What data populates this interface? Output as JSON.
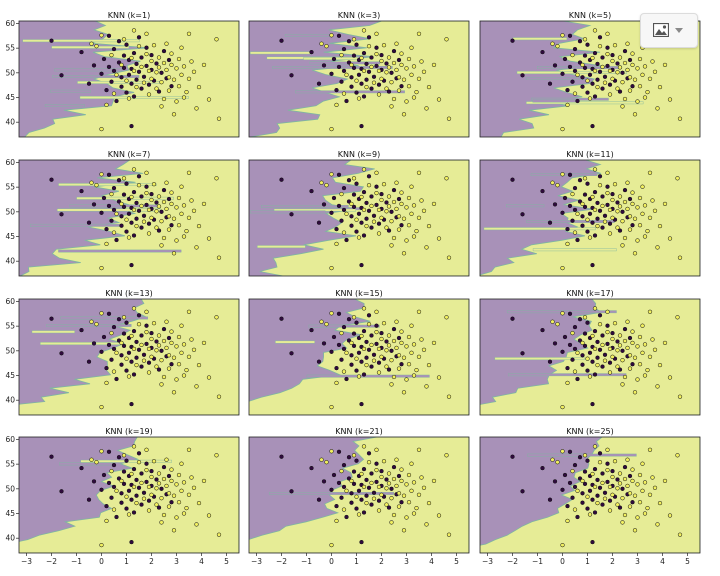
{
  "chart_data": {
    "type": "scatter",
    "layout": "4x3 grid of decision-boundary panels",
    "panels": [
      {
        "title": "KNN (k=1)"
      },
      {
        "title": "KNN (k=3)"
      },
      {
        "title": "KNN (k=5)"
      },
      {
        "title": "KNN (k=7)"
      },
      {
        "title": "KNN (k=9)"
      },
      {
        "title": "KNN (k=11)"
      },
      {
        "title": "KNN (k=13)"
      },
      {
        "title": "KNN (k=15)"
      },
      {
        "title": "KNN (k=17)"
      },
      {
        "title": "KNN (k=19)"
      },
      {
        "title": "KNN (k=21)"
      },
      {
        "title": "KNN (k=25)"
      }
    ],
    "xlim": [
      -3.3,
      5.5
    ],
    "ylim": [
      37,
      60.5
    ],
    "xticks": [
      -3,
      -2,
      -1,
      0,
      1,
      2,
      3,
      4,
      5
    ],
    "yticks": [
      40,
      45,
      50,
      55,
      60
    ],
    "region_colors": {
      "class0": "#a891b8",
      "class1": "#e6ec96",
      "edge": "#7fb6a0"
    },
    "point_colors": {
      "class0": "#2f0a3d",
      "class1": "#f2f060"
    },
    "points": [
      [
        -2.0,
        56.5,
        0
      ],
      [
        -1.6,
        49.5,
        0
      ],
      [
        -0.8,
        54.2,
        0
      ],
      [
        -0.5,
        47.8,
        0
      ],
      [
        -0.3,
        51.5,
        0
      ],
      [
        -0.2,
        55.4,
        1
      ],
      [
        0.0,
        49.8,
        0
      ],
      [
        0.1,
        52.8,
        0
      ],
      [
        0.2,
        46.5,
        0
      ],
      [
        0.3,
        57.5,
        0
      ],
      [
        0.3,
        51.2,
        0
      ],
      [
        0.4,
        48.2,
        0
      ],
      [
        0.5,
        54.8,
        0
      ],
      [
        0.5,
        50.4,
        0
      ],
      [
        0.6,
        44.3,
        0
      ],
      [
        0.7,
        52.1,
        0
      ],
      [
        0.7,
        56.4,
        0
      ],
      [
        0.8,
        49.1,
        0
      ],
      [
        0.8,
        47.2,
        0
      ],
      [
        0.9,
        53.5,
        0
      ],
      [
        0.9,
        51.0,
        0
      ],
      [
        1.0,
        46.0,
        0
      ],
      [
        1.0,
        55.7,
        0
      ],
      [
        1.1,
        49.6,
        0
      ],
      [
        1.1,
        52.6,
        0
      ],
      [
        1.2,
        47.8,
        0
      ],
      [
        1.2,
        50.8,
        0
      ],
      [
        1.3,
        54.0,
        0
      ],
      [
        1.3,
        45.2,
        0
      ],
      [
        1.4,
        51.8,
        0
      ],
      [
        1.4,
        48.6,
        0
      ],
      [
        1.5,
        57.2,
        0
      ],
      [
        1.5,
        50.2,
        0
      ],
      [
        1.6,
        53.1,
        0
      ],
      [
        1.6,
        46.8,
        0
      ],
      [
        1.7,
        49.2,
        0
      ],
      [
        1.8,
        51.4,
        0
      ],
      [
        1.8,
        55.1,
        0
      ],
      [
        1.9,
        47.6,
        0
      ],
      [
        2.0,
        50.6,
        0
      ],
      [
        2.0,
        53.6,
        0
      ],
      [
        2.1,
        48.4,
        0
      ],
      [
        2.2,
        51.9,
        0
      ],
      [
        2.3,
        46.2,
        0
      ],
      [
        2.4,
        50.0,
        0
      ],
      [
        2.5,
        54.4,
        0
      ],
      [
        2.6,
        48.9,
        0
      ],
      [
        1.2,
        39.2,
        0
      ],
      [
        2.7,
        52.6,
        0
      ],
      [
        2.8,
        47.3,
        0
      ],
      [
        -0.4,
        55.9,
        1
      ],
      [
        0.0,
        57.6,
        1
      ],
      [
        0.2,
        43.5,
        1
      ],
      [
        0.4,
        53.6,
        1
      ],
      [
        0.5,
        45.8,
        1
      ],
      [
        0.6,
        49.6,
        1
      ],
      [
        0.8,
        51.6,
        1
      ],
      [
        0.9,
        56.8,
        1
      ],
      [
        1.0,
        48.4,
        1
      ],
      [
        1.1,
        44.8,
        1
      ],
      [
        1.2,
        53.0,
        1
      ],
      [
        1.3,
        50.4,
        1
      ],
      [
        1.4,
        47.1,
        1
      ],
      [
        1.5,
        55.4,
        1
      ],
      [
        1.6,
        51.2,
        1
      ],
      [
        1.7,
        48.0,
        1
      ],
      [
        1.8,
        53.8,
        1
      ],
      [
        1.9,
        50.4,
        1
      ],
      [
        1.9,
        45.6,
        1
      ],
      [
        2.0,
        52.4,
        1
      ],
      [
        2.0,
        48.8,
        1
      ],
      [
        2.1,
        55.6,
        1
      ],
      [
        2.2,
        50.1,
        1
      ],
      [
        2.2,
        46.8,
        1
      ],
      [
        2.3,
        53.1,
        1
      ],
      [
        2.3,
        51.1,
        1
      ],
      [
        2.4,
        48.1,
        1
      ],
      [
        2.5,
        52.0,
        1
      ],
      [
        2.5,
        44.7,
        1
      ],
      [
        2.6,
        50.6,
        1
      ],
      [
        2.6,
        55.9,
        1
      ],
      [
        2.7,
        49.1,
        1
      ],
      [
        2.7,
        46.4,
        1
      ],
      [
        2.8,
        51.6,
        1
      ],
      [
        2.8,
        53.9,
        1
      ],
      [
        2.9,
        48.6,
        1
      ],
      [
        3.0,
        50.9,
        1
      ],
      [
        3.0,
        44.2,
        1
      ],
      [
        3.1,
        52.8,
        1
      ],
      [
        3.1,
        47.3,
        1
      ],
      [
        3.2,
        49.6,
        1
      ],
      [
        3.2,
        55.1,
        1
      ],
      [
        3.3,
        51.3,
        1
      ],
      [
        3.4,
        46.1,
        1
      ],
      [
        3.5,
        48.8,
        1
      ],
      [
        3.6,
        52.3,
        1
      ],
      [
        3.7,
        50.2,
        1
      ],
      [
        3.9,
        47.1,
        1
      ],
      [
        4.1,
        51.6,
        1
      ],
      [
        4.3,
        44.6,
        1
      ],
      [
        4.6,
        56.8,
        1
      ],
      [
        3.8,
        42.8,
        1
      ],
      [
        0.0,
        38.6,
        1
      ],
      [
        2.9,
        41.6,
        1
      ],
      [
        3.5,
        57.9,
        1
      ],
      [
        1.3,
        58.6,
        1
      ],
      [
        4.7,
        40.7,
        1
      ],
      [
        1.8,
        57.9,
        1
      ],
      [
        3.3,
        45.0,
        1
      ],
      [
        2.4,
        43.2,
        1
      ]
    ]
  },
  "toolbar": {
    "image_icon": "image-icon",
    "dropdown_icon": "chevron-down-icon"
  }
}
